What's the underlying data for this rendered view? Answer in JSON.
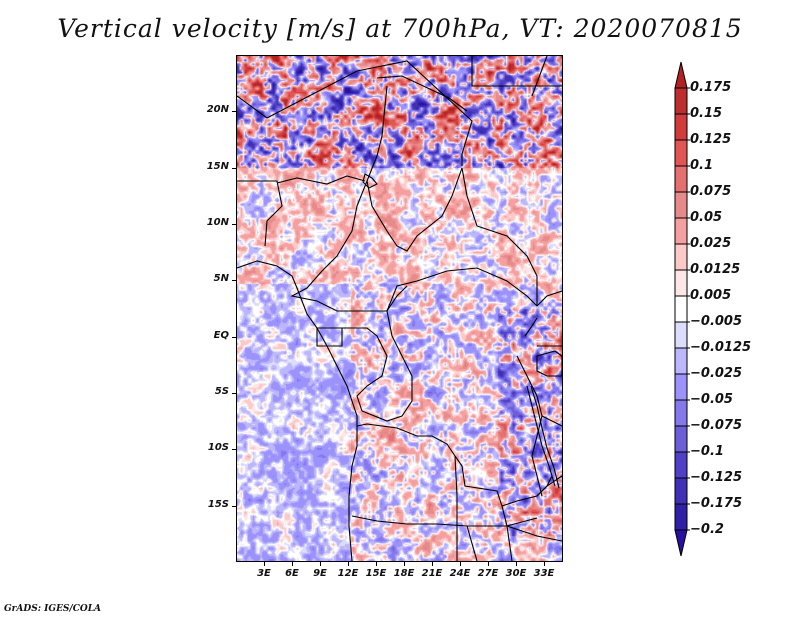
{
  "title": "Vertical velocity [m/s] at 700hPa, VT: 2020070815",
  "credit": "GrADS: IGES/COLA",
  "map": {
    "variable": "Vertical velocity",
    "units": "m/s",
    "level": "700hPa",
    "valid_time": "2020070815",
    "lat_range": [
      -20,
      25
    ],
    "lon_range": [
      0,
      35
    ],
    "y_axis_labels": [
      "20N",
      "15N",
      "10N",
      "5N",
      "EQ",
      "5S",
      "10S",
      "15S"
    ],
    "y_axis_values": [
      20,
      15,
      10,
      5,
      0,
      -5,
      -10,
      -15
    ],
    "x_axis_labels": [
      "3E",
      "6E",
      "9E",
      "12E",
      "15E",
      "18E",
      "21E",
      "24E",
      "27E",
      "30E",
      "33E"
    ],
    "x_axis_values": [
      3,
      6,
      9,
      12,
      15,
      18,
      21,
      24,
      27,
      30,
      33
    ]
  },
  "colorbar": {
    "labels": [
      "0.175",
      "0.15",
      "0.125",
      "0.1",
      "0.075",
      "0.05",
      "0.025",
      "0.0125",
      "0.005",
      "−0.005",
      "−0.0125",
      "−0.025",
      "−0.05",
      "−0.075",
      "−0.1",
      "−0.125",
      "−0.175",
      "−0.2"
    ],
    "colors": [
      "#b22222",
      "#be2e2e",
      "#d03c3c",
      "#e25555",
      "#e67070",
      "#e68a8a",
      "#f5a0a0",
      "#fcc8c8",
      "#fde6e6",
      "#ffffff",
      "#dcdcfc",
      "#bcb6fc",
      "#9c92fc",
      "#8478ec",
      "#6c5ed8",
      "#5040c8",
      "#4030b8",
      "#3020a8",
      "#2810a0"
    ],
    "top_arrow_color": "#b22222",
    "bottom_arrow_color": "#2810a0"
  }
}
